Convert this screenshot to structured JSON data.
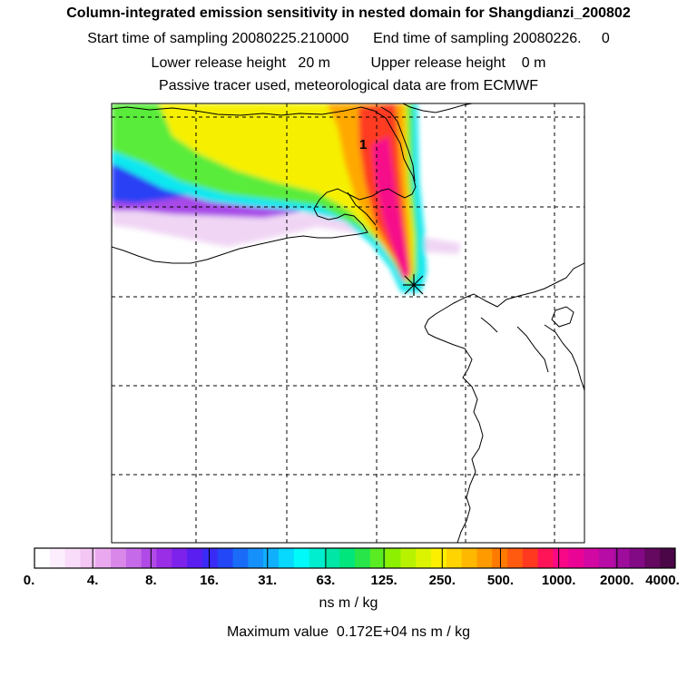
{
  "titles": {
    "line1": "Column-integrated emission sensitivity in nested domain for Shangdianzi_200802",
    "line2": "Start time of sampling 20080225.210000      End time of sampling 20080226.     0",
    "line3": "Lower release height   20 m          Upper release height    0 m",
    "line4": "Passive tracer used, meteorological data are from ECMWF"
  },
  "map": {
    "marker_label": "1",
    "marker_symbol": "receptor-star-icon"
  },
  "colorbar": {
    "tick_labels": [
      "0.",
      "4.",
      "8.",
      "16.",
      "31.",
      "63.",
      "125.",
      "250.",
      "500.",
      "1000.",
      "2000.",
      "4000."
    ],
    "colors": [
      "#ffffff",
      "#fdeefd",
      "#f9dcf9",
      "#f3c6f3",
      "#eaa9ee",
      "#d988ea",
      "#c56ae8",
      "#b04ae6",
      "#9a2ee6",
      "#7d22ea",
      "#5a1ef0",
      "#3a2af5",
      "#2346f6",
      "#1a6cf8",
      "#1690fa",
      "#10b0fc",
      "#06d8fe",
      "#00fafa",
      "#00eed0",
      "#00e6a6",
      "#00e67c",
      "#28e64a",
      "#5aec22",
      "#8cf000",
      "#b8f200",
      "#dcf400",
      "#fcf000",
      "#ffd400",
      "#ffb800",
      "#ff9a00",
      "#ff7a00",
      "#ff5a10",
      "#ff3820",
      "#ff1458",
      "#f80886",
      "#ea0496",
      "#d208a2",
      "#b80ca6",
      "#9e0c9c",
      "#820a84",
      "#640860",
      "#4a0646"
    ]
  },
  "units": "ns m / kg",
  "max_value": "Maximum value  0.172E+04 ns m / kg"
}
